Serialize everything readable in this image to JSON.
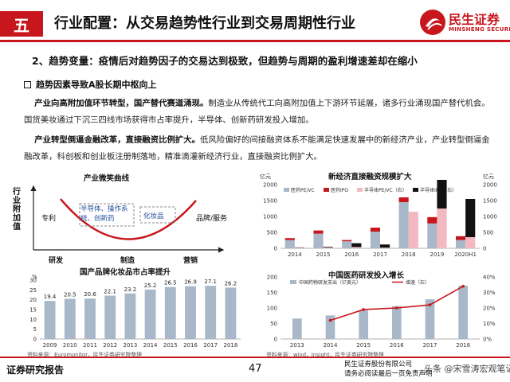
{
  "header": {
    "section_number": "五",
    "title": "行业配置：从交易趋势性行业到交易周期性行业",
    "logo_cn": "民生证券",
    "logo_en": "MINSHENG SECURITIES"
  },
  "subtitle": "2、趋势变量：疫情后对趋势因子的交易达到极致，但趋势与周期的盈利增速差却在缩小",
  "bullet": "趋势因素导致A股长期中枢向上",
  "para1": {
    "lead": "产业向高附加值环节转型，国产替代赛道涌现。",
    "body": "制造业从传统代工向高附加值上下游环节延展，诸多行业涌现国产替代机会。国货美妆通过下沉三四线市场获得市占率提升，半导体、创新药研发投入增加。"
  },
  "para2": {
    "lead": "产业转型倒逼金融改革，直接融资比例扩大。",
    "body": "低风险偏好的间接融资体系不能满足快速发展中的新经济产业，产业转型倒逼金融改革，科创板和创业板注册制落地，精准滴灌新经济行业，直接融资比例扩大。"
  },
  "smile": {
    "title": "产业微笑曲线",
    "y_axis_label": "行业附加值",
    "left_label": "专利",
    "right_label": "品牌/服务",
    "inner_left": "半导体、操作系统、创新药",
    "inner_right": "化妆品",
    "x_labels": [
      "研发",
      "制造",
      "营销"
    ]
  },
  "chart_data": [
    {
      "type": "bar",
      "title": "国产品牌化妆品市占率提升",
      "ylabel": "%",
      "categories": [
        "2009",
        "2010",
        "2011",
        "2012",
        "2013",
        "2014",
        "2015",
        "2016",
        "2017",
        "2018"
      ],
      "values": [
        19.4,
        20.5,
        20.6,
        22.1,
        23.2,
        25.2,
        26.5,
        26.9,
        27.1,
        26.2
      ],
      "data_labels": [
        "19.4",
        "20.5",
        "20.6",
        "22.1",
        "23.2",
        "25.2",
        "26.5",
        "26.9",
        "27.1",
        "26.2"
      ],
      "yticks": [
        "0",
        "5",
        "10",
        "15",
        "20",
        "25",
        "30"
      ],
      "ylim": [
        0,
        30
      ],
      "source": "资料来源：Euromonitor，民生证券研究院整理"
    },
    {
      "type": "bar",
      "title": "新经济直接融资规模扩大",
      "ylabel_left": "亿元",
      "ylabel_right": "亿元",
      "categories": [
        "2014",
        "2015",
        "2016",
        "2017",
        "2018",
        "2019",
        "2020H1"
      ],
      "legend": [
        "医药PE/VC",
        "医药IPO",
        "半导体PE/VC（右）",
        "半导体IPO（右）"
      ],
      "series": [
        {
          "name": "医药PE/VC",
          "axis": "left",
          "values": [
            260,
            460,
            220,
            520,
            1450,
            780,
            260
          ]
        },
        {
          "name": "医药IPO",
          "axis": "left",
          "values": [
            60,
            100,
            40,
            130,
            150,
            200,
            120
          ]
        },
        {
          "name": "半导体PE/VC（右）",
          "axis": "right",
          "values": [
            20,
            30,
            40,
            20,
            1150,
            1250,
            350
          ]
        },
        {
          "name": "半导体IPO（右）",
          "axis": "right",
          "values": [
            10,
            20,
            120,
            100,
            0,
            900,
            1200
          ]
        }
      ],
      "yticks_left": [
        "0",
        "500",
        "1000",
        "1500",
        "2000"
      ],
      "yticks_right": [
        "0",
        "500",
        "1000",
        "1500",
        "2000"
      ],
      "ylim_left": [
        0,
        2000
      ],
      "ylim_right": [
        0,
        2000
      ],
      "colors": [
        "#a8b8c8",
        "#c8161d",
        "#f4b8c0",
        "#111111"
      ]
    },
    {
      "type": "bar+line",
      "title": "中国医药研发投入增长",
      "categories": [
        "2013",
        "2014",
        "2015",
        "2016",
        "2017",
        "2018"
      ],
      "legend": [
        "中国药物研发支出（亿美元）",
        "增速（右）"
      ],
      "bar_values": [
        66,
        76,
        92,
        106,
        128,
        172
      ],
      "line_values": [
        null,
        12,
        19,
        20,
        22,
        34
      ],
      "yticks_left": [
        "0",
        "50",
        "100",
        "150",
        "200"
      ],
      "yticks_right": [
        "0%",
        "10%",
        "20%",
        "30%",
        "40%"
      ],
      "ylim_left": [
        0,
        200
      ],
      "ylim_right": [
        0,
        40
      ],
      "source": "资料来源：wind，insight，民生证券研究院整理"
    }
  ],
  "footer": {
    "left": "证券研究报告",
    "page": "47",
    "right_line1": "民生证券股份有限公司",
    "right_line2": "请务必阅读最后一页免责声明",
    "watermark": "头条 @宋雪涛宏观笔记"
  },
  "colors": {
    "accent": "#c8161d",
    "bar_gray": "#a8b8c8"
  }
}
